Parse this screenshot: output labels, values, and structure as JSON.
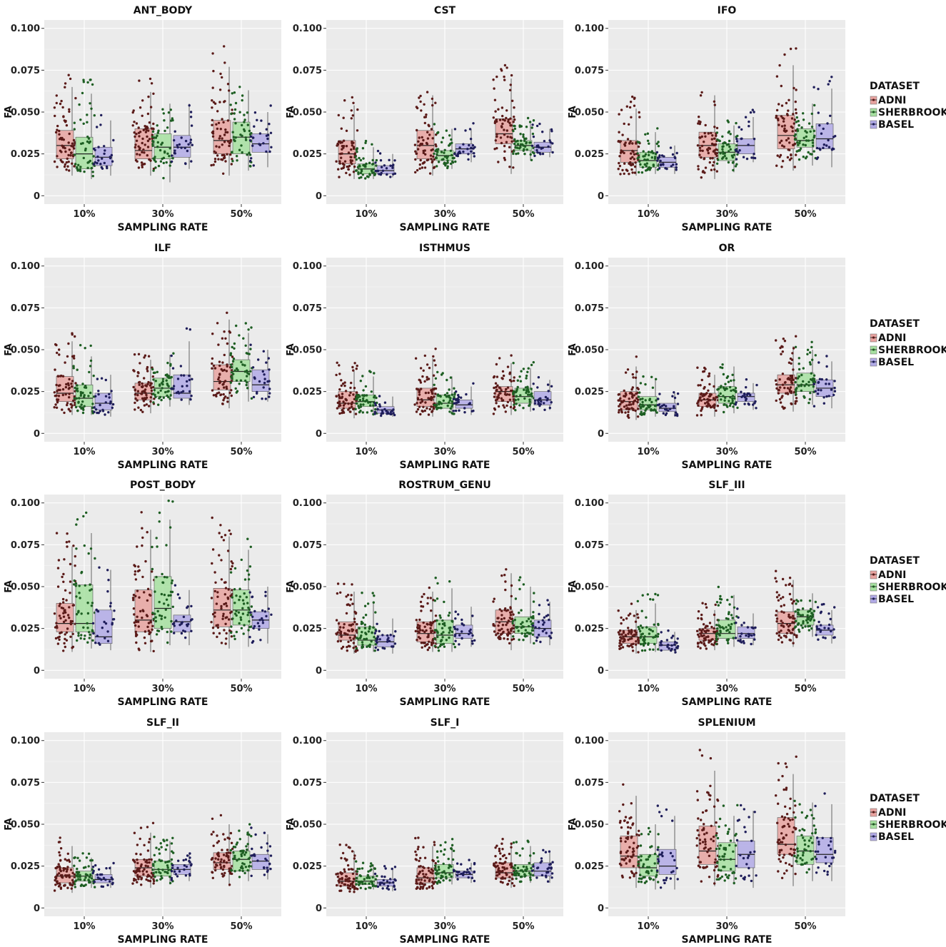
{
  "chart_data": {
    "type": "box",
    "ylabel": "FA",
    "xlabel": "SAMPLING RATE",
    "categories": [
      "10%",
      "30%",
      "50%"
    ],
    "ylim": [
      -0.005,
      0.105
    ],
    "yticks": [
      0,
      0.025,
      0.05,
      0.075,
      0.1
    ],
    "ytick_labels": [
      "0",
      "0.025",
      "0.050",
      "0.075",
      "0.100"
    ],
    "legend": {
      "title": "DATASET",
      "position": "right",
      "items": [
        {
          "name": "ADNI",
          "fill": "#e8a3a0",
          "point": "#5a1a18"
        },
        {
          "name": "SHERBROOKE",
          "fill": "#a6e0a0",
          "point": "#1d5e22"
        },
        {
          "name": "BASEL",
          "fill": "#b1aae6",
          "point": "#1e1d5a"
        }
      ]
    },
    "panels": [
      {
        "title": "ANT_BODY",
        "boxes": [
          [
            [
              0.012,
              0.022,
              0.03,
              0.039,
              0.065
            ],
            [
              0.01,
              0.016,
              0.025,
              0.035,
              0.061
            ],
            [
              0.012,
              0.018,
              0.023,
              0.029,
              0.045
            ]
          ],
          [
            [
              0.012,
              0.022,
              0.027,
              0.04,
              0.062
            ],
            [
              0.008,
              0.022,
              0.029,
              0.037,
              0.055
            ],
            [
              0.016,
              0.023,
              0.029,
              0.036,
              0.055
            ]
          ],
          [
            [
              0.012,
              0.025,
              0.033,
              0.045,
              0.077
            ],
            [
              0.015,
              0.025,
              0.035,
              0.044,
              0.063
            ],
            [
              0.017,
              0.026,
              0.031,
              0.037,
              0.05
            ]
          ]
        ]
      },
      {
        "title": "CST",
        "boxes": [
          [
            [
              0.01,
              0.019,
              0.025,
              0.033,
              0.054
            ],
            [
              0.01,
              0.013,
              0.016,
              0.019,
              0.029
            ],
            [
              0.011,
              0.013,
              0.015,
              0.018,
              0.025
            ]
          ],
          [
            [
              0.012,
              0.022,
              0.03,
              0.039,
              0.06
            ],
            [
              0.016,
              0.021,
              0.024,
              0.027,
              0.04
            ],
            [
              0.02,
              0.025,
              0.028,
              0.031,
              0.04
            ]
          ],
          [
            [
              0.013,
              0.031,
              0.037,
              0.046,
              0.07
            ],
            [
              0.021,
              0.027,
              0.03,
              0.033,
              0.043
            ],
            [
              0.023,
              0.026,
              0.029,
              0.032,
              0.04
            ]
          ]
        ]
      },
      {
        "title": "IFO",
        "boxes": [
          [
            [
              0.012,
              0.02,
              0.027,
              0.033,
              0.052
            ],
            [
              0.013,
              0.017,
              0.021,
              0.026,
              0.038
            ],
            [
              0.013,
              0.017,
              0.02,
              0.023,
              0.03
            ]
          ],
          [
            [
              0.01,
              0.023,
              0.03,
              0.038,
              0.06
            ],
            [
              0.014,
              0.021,
              0.026,
              0.031,
              0.042
            ],
            [
              0.02,
              0.025,
              0.03,
              0.034,
              0.047
            ]
          ],
          [
            [
              0.015,
              0.028,
              0.036,
              0.048,
              0.078
            ],
            [
              0.018,
              0.029,
              0.033,
              0.04,
              0.055
            ],
            [
              0.017,
              0.028,
              0.034,
              0.043,
              0.064
            ]
          ]
        ]
      },
      {
        "title": "ILF",
        "boxes": [
          [
            [
              0.011,
              0.019,
              0.024,
              0.034,
              0.055
            ],
            [
              0.011,
              0.016,
              0.021,
              0.029,
              0.046
            ],
            [
              0.01,
              0.014,
              0.018,
              0.024,
              0.035
            ]
          ],
          [
            [
              0.012,
              0.02,
              0.024,
              0.03,
              0.044
            ],
            [
              0.016,
              0.022,
              0.027,
              0.033,
              0.047
            ],
            [
              0.017,
              0.021,
              0.024,
              0.035,
              0.055
            ]
          ],
          [
            [
              0.015,
              0.026,
              0.031,
              0.041,
              0.068
            ],
            [
              0.019,
              0.031,
              0.037,
              0.044,
              0.06
            ],
            [
              0.019,
              0.025,
              0.029,
              0.038,
              0.05
            ]
          ]
        ]
      },
      {
        "title": "ISTHMUS",
        "boxes": [
          [
            [
              0.009,
              0.015,
              0.018,
              0.025,
              0.038
            ],
            [
              0.011,
              0.016,
              0.019,
              0.023,
              0.034
            ],
            [
              0.01,
              0.012,
              0.014,
              0.016,
              0.022
            ]
          ],
          [
            [
              0.01,
              0.016,
              0.02,
              0.027,
              0.045
            ],
            [
              0.011,
              0.015,
              0.018,
              0.023,
              0.034
            ],
            [
              0.011,
              0.015,
              0.017,
              0.02,
              0.028
            ]
          ],
          [
            [
              0.011,
              0.019,
              0.025,
              0.028,
              0.042
            ],
            [
              0.013,
              0.018,
              0.022,
              0.027,
              0.039
            ],
            [
              0.014,
              0.017,
              0.02,
              0.025,
              0.032
            ]
          ]
        ]
      },
      {
        "title": "OR",
        "boxes": [
          [
            [
              0.008,
              0.014,
              0.019,
              0.025,
              0.04
            ],
            [
              0.01,
              0.014,
              0.017,
              0.022,
              0.032
            ],
            [
              0.01,
              0.013,
              0.015,
              0.018,
              0.024
            ]
          ],
          [
            [
              0.01,
              0.016,
              0.02,
              0.024,
              0.035
            ],
            [
              0.012,
              0.018,
              0.022,
              0.028,
              0.04
            ],
            [
              0.014,
              0.019,
              0.022,
              0.024,
              0.03
            ]
          ],
          [
            [
              0.013,
              0.024,
              0.029,
              0.035,
              0.052
            ],
            [
              0.017,
              0.025,
              0.029,
              0.036,
              0.05
            ],
            [
              0.015,
              0.022,
              0.027,
              0.032,
              0.043
            ]
          ]
        ]
      },
      {
        "title": "POST_BODY",
        "boxes": [
          [
            [
              0.011,
              0.023,
              0.028,
              0.04,
              0.074
            ],
            [
              0.013,
              0.023,
              0.028,
              0.051,
              0.082
            ],
            [
              0.012,
              0.016,
              0.02,
              0.036,
              0.06
            ]
          ],
          [
            [
              0.011,
              0.023,
              0.03,
              0.048,
              0.084
            ],
            [
              0.015,
              0.025,
              0.037,
              0.056,
              0.09
            ],
            [
              0.015,
              0.023,
              0.029,
              0.033,
              0.048
            ]
          ],
          [
            [
              0.013,
              0.026,
              0.036,
              0.049,
              0.08
            ],
            [
              0.014,
              0.027,
              0.036,
              0.048,
              0.072
            ],
            [
              0.016,
              0.025,
              0.03,
              0.035,
              0.05
            ]
          ]
        ]
      },
      {
        "title": "ROSTRUM_GENU",
        "boxes": [
          [
            [
              0.01,
              0.018,
              0.021,
              0.029,
              0.047
            ],
            [
              0.011,
              0.015,
              0.018,
              0.026,
              0.041
            ],
            [
              0.01,
              0.014,
              0.017,
              0.021,
              0.031
            ]
          ],
          [
            [
              0.011,
              0.017,
              0.022,
              0.029,
              0.047
            ],
            [
              0.011,
              0.016,
              0.021,
              0.03,
              0.049
            ],
            [
              0.014,
              0.019,
              0.022,
              0.027,
              0.038
            ]
          ],
          [
            [
              0.012,
              0.022,
              0.029,
              0.036,
              0.058
            ],
            [
              0.016,
              0.022,
              0.026,
              0.032,
              0.05
            ],
            [
              0.015,
              0.02,
              0.025,
              0.03,
              0.041
            ]
          ]
        ]
      },
      {
        "title": "SLF_III",
        "boxes": [
          [
            [
              0.01,
              0.016,
              0.02,
              0.024,
              0.036
            ],
            [
              0.011,
              0.016,
              0.02,
              0.026,
              0.04
            ],
            [
              0.01,
              0.012,
              0.015,
              0.017,
              0.023
            ]
          ],
          [
            [
              0.012,
              0.018,
              0.022,
              0.025,
              0.036
            ],
            [
              0.014,
              0.019,
              0.022,
              0.03,
              0.045
            ],
            [
              0.015,
              0.019,
              0.022,
              0.026,
              0.034
            ]
          ],
          [
            [
              0.014,
              0.022,
              0.028,
              0.035,
              0.054
            ],
            [
              0.02,
              0.027,
              0.032,
              0.036,
              0.046
            ],
            [
              0.016,
              0.021,
              0.024,
              0.027,
              0.036
            ]
          ]
        ]
      },
      {
        "title": "SLF_II",
        "boxes": [
          [
            [
              0.009,
              0.015,
              0.019,
              0.024,
              0.037
            ],
            [
              0.012,
              0.016,
              0.019,
              0.022,
              0.03
            ],
            [
              0.012,
              0.015,
              0.017,
              0.02,
              0.025
            ]
          ],
          [
            [
              0.012,
              0.019,
              0.024,
              0.029,
              0.045
            ],
            [
              0.014,
              0.019,
              0.023,
              0.028,
              0.04
            ],
            [
              0.016,
              0.02,
              0.023,
              0.026,
              0.033
            ]
          ],
          [
            [
              0.013,
              0.023,
              0.027,
              0.033,
              0.05
            ],
            [
              0.016,
              0.022,
              0.029,
              0.034,
              0.046
            ],
            [
              0.017,
              0.023,
              0.028,
              0.032,
              0.044
            ]
          ]
        ]
      },
      {
        "title": "SLF_I",
        "boxes": [
          [
            [
              0.009,
              0.013,
              0.016,
              0.021,
              0.034
            ],
            [
              0.011,
              0.014,
              0.016,
              0.019,
              0.026
            ],
            [
              0.01,
              0.013,
              0.015,
              0.017,
              0.023
            ]
          ],
          [
            [
              0.011,
              0.015,
              0.018,
              0.024,
              0.037
            ],
            [
              0.014,
              0.018,
              0.021,
              0.026,
              0.037
            ],
            [
              0.015,
              0.018,
              0.02,
              0.022,
              0.027
            ]
          ],
          [
            [
              0.012,
              0.018,
              0.021,
              0.027,
              0.038
            ],
            [
              0.015,
              0.019,
              0.022,
              0.026,
              0.037
            ],
            [
              0.015,
              0.019,
              0.022,
              0.027,
              0.034
            ]
          ]
        ]
      },
      {
        "title": "SPLENIUM",
        "boxes": [
          [
            [
              0.012,
              0.024,
              0.031,
              0.043,
              0.067
            ],
            [
              0.011,
              0.019,
              0.024,
              0.032,
              0.05
            ],
            [
              0.011,
              0.02,
              0.025,
              0.035,
              0.055
            ]
          ],
          [
            [
              0.013,
              0.026,
              0.034,
              0.049,
              0.082
            ],
            [
              0.014,
              0.022,
              0.029,
              0.039,
              0.055
            ],
            [
              0.012,
              0.024,
              0.032,
              0.04,
              0.058
            ]
          ],
          [
            [
              0.013,
              0.032,
              0.038,
              0.054,
              0.08
            ],
            [
              0.016,
              0.026,
              0.034,
              0.043,
              0.063
            ],
            [
              0.016,
              0.027,
              0.032,
              0.042,
              0.062
            ]
          ]
        ]
      }
    ]
  }
}
